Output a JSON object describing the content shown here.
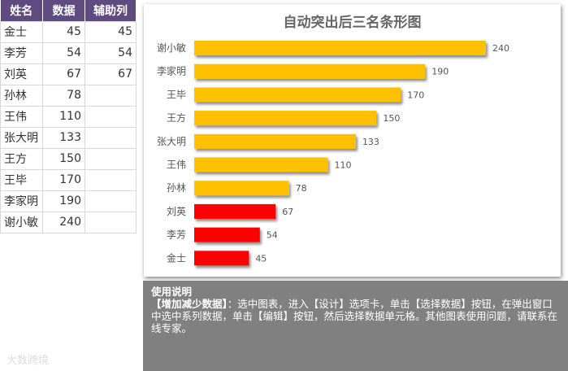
{
  "table": {
    "headers": [
      "姓名",
      "数据",
      "辅助列"
    ],
    "rows": [
      [
        "金士",
        "45",
        "45"
      ],
      [
        "李芳",
        "54",
        "54"
      ],
      [
        "刘英",
        "67",
        "67"
      ],
      [
        "孙林",
        "78",
        ""
      ],
      [
        "王伟",
        "110",
        ""
      ],
      [
        "张大明",
        "133",
        ""
      ],
      [
        "王方",
        "150",
        ""
      ],
      [
        "王毕",
        "170",
        ""
      ],
      [
        "李家明",
        "190",
        ""
      ],
      [
        "谢小敏",
        "240",
        ""
      ]
    ]
  },
  "chart_data": {
    "type": "bar",
    "orientation": "horizontal",
    "title": "自动突出后三名条形图",
    "categories": [
      "谢小敏",
      "李家明",
      "王毕",
      "王方",
      "张大明",
      "王伟",
      "孙林",
      "刘英",
      "李芳",
      "金士"
    ],
    "values": [
      240,
      190,
      170,
      150,
      133,
      110,
      78,
      67,
      54,
      45
    ],
    "highlight_bottom": 3,
    "colors": {
      "normal": "#ffc000",
      "highlight": "#ff0000"
    },
    "xlim": [
      0,
      240
    ]
  },
  "note": {
    "title": "使用说明",
    "bold_part": "【增加减少数据】",
    "text": "：选中图表，进入【设计】选项卡，单击【选择数据】按钮，在弹出窗口中选中系列数据，单击【编辑】按钮，然后选择数据单元格。其他图表使用问题，请联系在线专家。"
  },
  "watermark": "大数跨境"
}
